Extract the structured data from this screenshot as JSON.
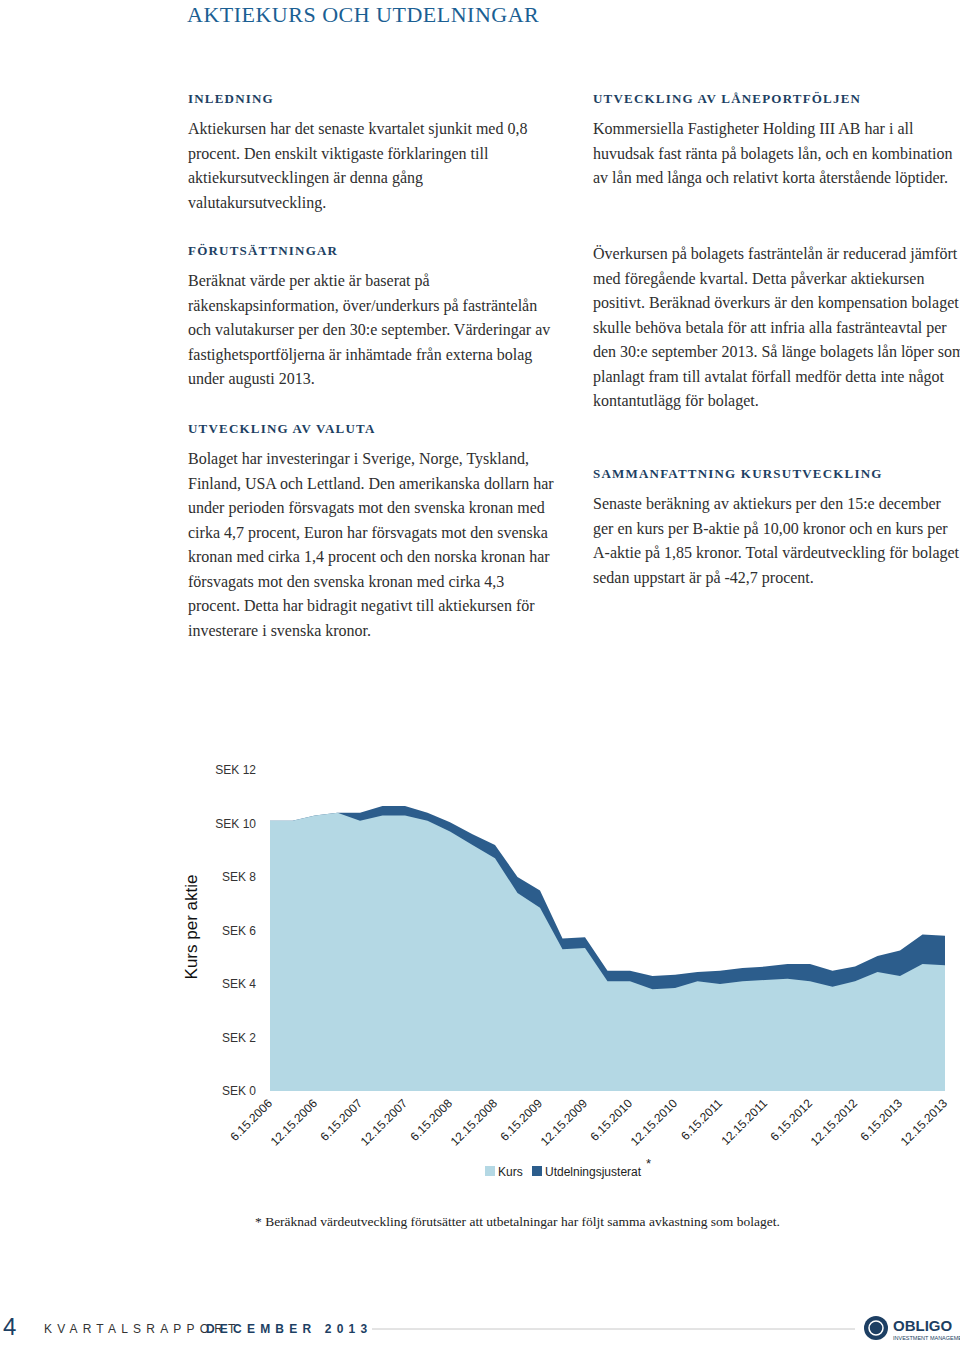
{
  "header": {
    "title": "AKTIEKURS OCH UTDELNINGAR"
  },
  "sections": [
    {
      "heading": "INLEDNING",
      "paragraphs": [
        "Aktiekursen har det senaste kvartalet sjunkit med 0,8 procent. Den enskilt viktigaste förklaringen till aktiekursutvecklingen är denna gång valutakursutveckling."
      ]
    },
    {
      "heading": "FÖRUTSÄTTNINGAR",
      "paragraphs": [
        "Beräknat värde per aktie är baserat på räkenskapsinformation, över/underkurs på fasträntelån och valutakurser per den 30:e september. Värderingar av fastighetsportföljerna är inhämtade från externa bolag under augusti 2013."
      ]
    },
    {
      "heading": "UTVECKLING AV VALUTA",
      "paragraphs": [
        "Bolaget har investeringar i Sverige, Norge, Tyskland, Finland, USA och Lettland. Den amerikanska dollarn har under perioden försvagats mot den svenska kronan med cirka 4,7 procent, Euron har försvagats mot den svenska kronan med cirka 1,4 procent och den norska kronan har försvagats mot den svenska kronan med cirka 4,3 procent. Detta har bidragit negativt till aktiekursen för investerare i svenska kronor."
      ]
    },
    {
      "heading": "UTVECKLING AV LÅNEPORTFÖLJEN",
      "paragraphs": [
        "Kommersiella Fastigheter Holding III AB har i all huvudsak fast ränta på bolagets lån, och en kombination av lån med långa och relativt korta återstående löptider.",
        "Överkursen på bolagets fasträntelån är reducerad jämfört med föregående kvartal. Detta påverkar aktiekursen positivt. Beräknad överkurs är den kompensation bolaget skulle behöva betala för att infria alla fastränteavtal per den 30:e september 2013. Så länge bolagets lån löper som planlagt fram till avtalat förfall medför detta inte något kontantutlägg för bolaget."
      ]
    },
    {
      "heading": "SAMMANFATTNING KURSUTVECKLING",
      "paragraphs": [
        "Senaste beräkning av aktiekurs per den 15:e december ger en kurs per B-aktie på 10,00 kronor och en kurs per A-aktie på 1,85 kronor. Total värdeutveckling för bolaget sedan uppstart är på -42,7 procent."
      ]
    }
  ],
  "chart_data": {
    "type": "area",
    "y_label": "Kurs per aktie",
    "categories": [
      "6.15.2006",
      null,
      "12.15.2006",
      null,
      "6.15.2007",
      null,
      "12.15.2007",
      null,
      "6.15.2008",
      null,
      "12.15.2008",
      null,
      "6.15.2009",
      null,
      "12.15.2009",
      null,
      "6.15.2010",
      null,
      "12.15.2010",
      null,
      "6.15.2011",
      null,
      "12.15.2011",
      null,
      "6.15.2012",
      null,
      "12.15.2012",
      null,
      "6.15.2013",
      null,
      "12.15.2013"
    ],
    "series": [
      {
        "name": "Kurs",
        "color": "#b4d8e4",
        "values": [
          10.1,
          10.1,
          10.3,
          10.4,
          10.1,
          10.3,
          10.3,
          10.1,
          9.7,
          9.2,
          8.7,
          7.4,
          6.85,
          5.3,
          5.35,
          4.1,
          4.1,
          3.8,
          3.85,
          4.1,
          4.0,
          4.1,
          4.15,
          4.2,
          4.1,
          3.9,
          4.1,
          4.45,
          4.3,
          4.75,
          4.7
        ]
      },
      {
        "name": "Utdelningsjusterat",
        "color": "#2c5d8c",
        "values": [
          10.1,
          10.1,
          10.3,
          10.4,
          10.4,
          10.65,
          10.65,
          10.4,
          10.05,
          9.6,
          9.2,
          8.0,
          7.5,
          5.7,
          5.75,
          4.5,
          4.5,
          4.3,
          4.35,
          4.45,
          4.5,
          4.6,
          4.65,
          4.75,
          4.75,
          4.5,
          4.65,
          5.05,
          5.25,
          5.85,
          5.8
        ]
      }
    ],
    "ylim": [
      0,
      12
    ],
    "yticks": [
      {
        "value": 0,
        "label": "SEK 0"
      },
      {
        "value": 2,
        "label": "SEK 2"
      },
      {
        "value": 4,
        "label": "SEK 4"
      },
      {
        "value": 6,
        "label": "SEK 6"
      },
      {
        "value": 8,
        "label": "SEK 8"
      },
      {
        "value": 10,
        "label": "SEK 10"
      },
      {
        "value": 12,
        "label": "SEK 12"
      }
    ],
    "grid": false,
    "legend": "bottom",
    "legend_marker": "*",
    "footnote": "* Beräknad värdeutveckling förutsätter att utbetalningar har följt samma avkastning som bolaget."
  },
  "footer": {
    "page": "4",
    "report": "KVARTALSRAPPORT",
    "period": "DECEMBER 2013"
  },
  "logo": {
    "name": "OBLIGO",
    "tagline": "INVESTMENT MANAGEMENT"
  }
}
